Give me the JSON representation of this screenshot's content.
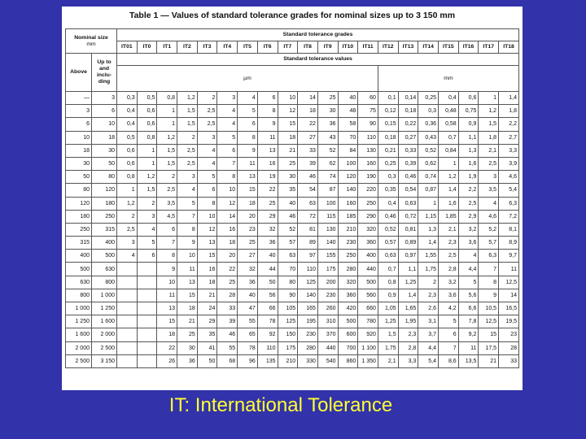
{
  "title": "Table 1 — Values of standard tolerance grades for nominal sizes up to 3 150 mm",
  "header": {
    "nominal_size": "Nominal size",
    "nominal_unit": "mm",
    "grades_title": "Standard tolerance grades",
    "grades": [
      "IT01",
      "IT0",
      "IT1",
      "IT2",
      "IT3",
      "IT4",
      "IT5",
      "IT6",
      "IT7",
      "IT8",
      "IT9",
      "IT10",
      "IT11",
      "IT12",
      "IT13",
      "IT14",
      "IT15",
      "IT16",
      "IT17",
      "IT18"
    ],
    "above": "Above",
    "up_to": "Up to and inclu- ding",
    "values_title": "Standard tolerance values",
    "unit_um": "µm",
    "unit_mm": "mm"
  },
  "rows": [
    [
      "—",
      "3",
      "0,3",
      "0,5",
      "0,8",
      "1,2",
      "2",
      "3",
      "4",
      "6",
      "10",
      "14",
      "25",
      "40",
      "60",
      "0,1",
      "0,14",
      "0,25",
      "0,4",
      "0,6",
      "1",
      "1,4"
    ],
    [
      "3",
      "6",
      "0,4",
      "0,6",
      "1",
      "1,5",
      "2,5",
      "4",
      "5",
      "8",
      "12",
      "18",
      "30",
      "48",
      "75",
      "0,12",
      "0,18",
      "0,3",
      "0,48",
      "0,75",
      "1,2",
      "1,8"
    ],
    [
      "6",
      "10",
      "0,4",
      "0,6",
      "1",
      "1,5",
      "2,5",
      "4",
      "6",
      "9",
      "15",
      "22",
      "36",
      "58",
      "90",
      "0,15",
      "0,22",
      "0,36",
      "0,58",
      "0,9",
      "1,5",
      "2,2"
    ],
    [
      "10",
      "18",
      "0,5",
      "0,8",
      "1,2",
      "2",
      "3",
      "5",
      "8",
      "11",
      "18",
      "27",
      "43",
      "70",
      "110",
      "0,18",
      "0,27",
      "0,43",
      "0,7",
      "1,1",
      "1,8",
      "2,7"
    ],
    [
      "18",
      "30",
      "0,6",
      "1",
      "1,5",
      "2,5",
      "4",
      "6",
      "9",
      "13",
      "21",
      "33",
      "52",
      "84",
      "130",
      "0,21",
      "0,33",
      "0,52",
      "0,84",
      "1,3",
      "2,1",
      "3,3"
    ],
    [
      "30",
      "50",
      "0,6",
      "1",
      "1,5",
      "2,5",
      "4",
      "7",
      "11",
      "16",
      "25",
      "39",
      "62",
      "100",
      "160",
      "0,25",
      "0,39",
      "0,62",
      "1",
      "1,6",
      "2,5",
      "3,9"
    ],
    [
      "50",
      "80",
      "0,8",
      "1,2",
      "2",
      "3",
      "5",
      "8",
      "13",
      "19",
      "30",
      "46",
      "74",
      "120",
      "190",
      "0,3",
      "0,46",
      "0,74",
      "1,2",
      "1,9",
      "3",
      "4,6"
    ],
    [
      "80",
      "120",
      "1",
      "1,5",
      "2,5",
      "4",
      "6",
      "10",
      "15",
      "22",
      "35",
      "54",
      "87",
      "140",
      "220",
      "0,35",
      "0,54",
      "0,87",
      "1,4",
      "2,2",
      "3,5",
      "5,4"
    ],
    [
      "120",
      "180",
      "1,2",
      "2",
      "3,5",
      "5",
      "8",
      "12",
      "18",
      "25",
      "40",
      "63",
      "100",
      "160",
      "250",
      "0,4",
      "0,63",
      "1",
      "1,6",
      "2,5",
      "4",
      "6,3"
    ],
    [
      "180",
      "250",
      "2",
      "3",
      "4,5",
      "7",
      "10",
      "14",
      "20",
      "29",
      "46",
      "72",
      "115",
      "185",
      "290",
      "0,46",
      "0,72",
      "1,15",
      "1,85",
      "2,9",
      "4,6",
      "7,2"
    ],
    [
      "250",
      "315",
      "2,5",
      "4",
      "6",
      "8",
      "12",
      "16",
      "23",
      "32",
      "52",
      "81",
      "130",
      "210",
      "320",
      "0,52",
      "0,81",
      "1,3",
      "2,1",
      "3,2",
      "5,2",
      "8,1"
    ],
    [
      "315",
      "400",
      "3",
      "5",
      "7",
      "9",
      "13",
      "18",
      "25",
      "36",
      "57",
      "89",
      "140",
      "230",
      "360",
      "0,57",
      "0,89",
      "1,4",
      "2,3",
      "3,6",
      "5,7",
      "8,9"
    ],
    [
      "400",
      "500",
      "4",
      "6",
      "8",
      "10",
      "15",
      "20",
      "27",
      "40",
      "63",
      "97",
      "155",
      "250",
      "400",
      "0,63",
      "0,97",
      "1,55",
      "2,5",
      "4",
      "6,3",
      "9,7"
    ],
    [
      "500",
      "630",
      null,
      null,
      "9",
      "11",
      "16",
      "22",
      "32",
      "44",
      "70",
      "110",
      "175",
      "280",
      "440",
      "0,7",
      "1,1",
      "1,75",
      "2,8",
      "4,4",
      "7",
      "11"
    ],
    [
      "630",
      "800",
      null,
      null,
      "10",
      "13",
      "18",
      "25",
      "36",
      "50",
      "80",
      "125",
      "200",
      "320",
      "500",
      "0,8",
      "1,25",
      "2",
      "3,2",
      "5",
      "8",
      "12,5"
    ],
    [
      "800",
      "1 000",
      null,
      null,
      "11",
      "15",
      "21",
      "28",
      "40",
      "56",
      "90",
      "140",
      "230",
      "360",
      "560",
      "0,9",
      "1,4",
      "2,3",
      "3,6",
      "5,6",
      "9",
      "14"
    ],
    [
      "1 000",
      "1 250",
      null,
      null,
      "13",
      "18",
      "24",
      "33",
      "47",
      "66",
      "105",
      "165",
      "260",
      "420",
      "660",
      "1,05",
      "1,65",
      "2,6",
      "4,2",
      "6,6",
      "10,5",
      "16,5"
    ],
    [
      "1 250",
      "1 600",
      null,
      null,
      "15",
      "21",
      "29",
      "39",
      "55",
      "78",
      "125",
      "195",
      "310",
      "500",
      "780",
      "1,25",
      "1,95",
      "3,1",
      "5",
      "7,8",
      "12,5",
      "19,5"
    ],
    [
      "1 600",
      "2 000",
      null,
      null,
      "18",
      "25",
      "35",
      "46",
      "65",
      "92",
      "150",
      "230",
      "370",
      "600",
      "920",
      "1,5",
      "2,3",
      "3,7",
      "6",
      "9,2",
      "15",
      "23"
    ],
    [
      "2 000",
      "2 500",
      null,
      null,
      "22",
      "30",
      "41",
      "55",
      "78",
      "110",
      "175",
      "280",
      "440",
      "700",
      "1 100",
      "1,75",
      "2,8",
      "4,4",
      "7",
      "11",
      "17,5",
      "28"
    ],
    [
      "2 500",
      "3 150",
      null,
      null,
      "26",
      "36",
      "50",
      "68",
      "96",
      "135",
      "210",
      "330",
      "540",
      "860",
      "1 350",
      "2,1",
      "3,3",
      "5,4",
      "8,6",
      "13,5",
      "21",
      "33"
    ]
  ],
  "caption": "IT: International Tolerance"
}
